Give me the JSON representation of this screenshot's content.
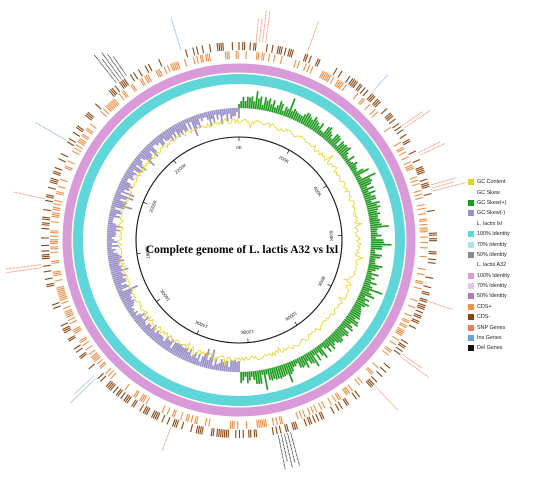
{
  "title": "Complete genome of L. lactis A32 vs lxl",
  "ticks": [
    "0K",
    "200K",
    "400K",
    "600K",
    "800K",
    "1000K",
    "1200K",
    "1400K",
    "1600K",
    "1800K",
    "2000K",
    "2200K"
  ],
  "legend": [
    {
      "label": "GC Content",
      "color": "#e8d21d"
    },
    {
      "label": "GC Skew",
      "color": "#ffffff"
    },
    {
      "label": "GC Skew(+)",
      "color": "#1f9a1f"
    },
    {
      "label": "GC Skew(-)",
      "color": "#9b8fc9"
    },
    {
      "label": "L. lactis lxl",
      "color": "#ffffff"
    },
    {
      "label": "100% Identity",
      "color": "#5fd6d9"
    },
    {
      "label": "70% Identity",
      "color": "#a8e6e8"
    },
    {
      "label": "50% Identity",
      "color": "#8a8a8a"
    },
    {
      "label": "L. lactis A32",
      "color": "#ffffff"
    },
    {
      "label": "100% Identity",
      "color": "#d99ad9"
    },
    {
      "label": "70% Identity",
      "color": "#e8c3e8"
    },
    {
      "label": "50% Identity",
      "color": "#b57ab5"
    },
    {
      "label": "CDS+",
      "color": "#f0904a"
    },
    {
      "label": "CDS-",
      "color": "#8b4513"
    },
    {
      "label": "SNP Genes",
      "color": "#f07a5a"
    },
    {
      "label": "Ins Genes",
      "color": "#6aa0e0"
    },
    {
      "label": "Del Genes",
      "color": "#111111"
    }
  ]
}
